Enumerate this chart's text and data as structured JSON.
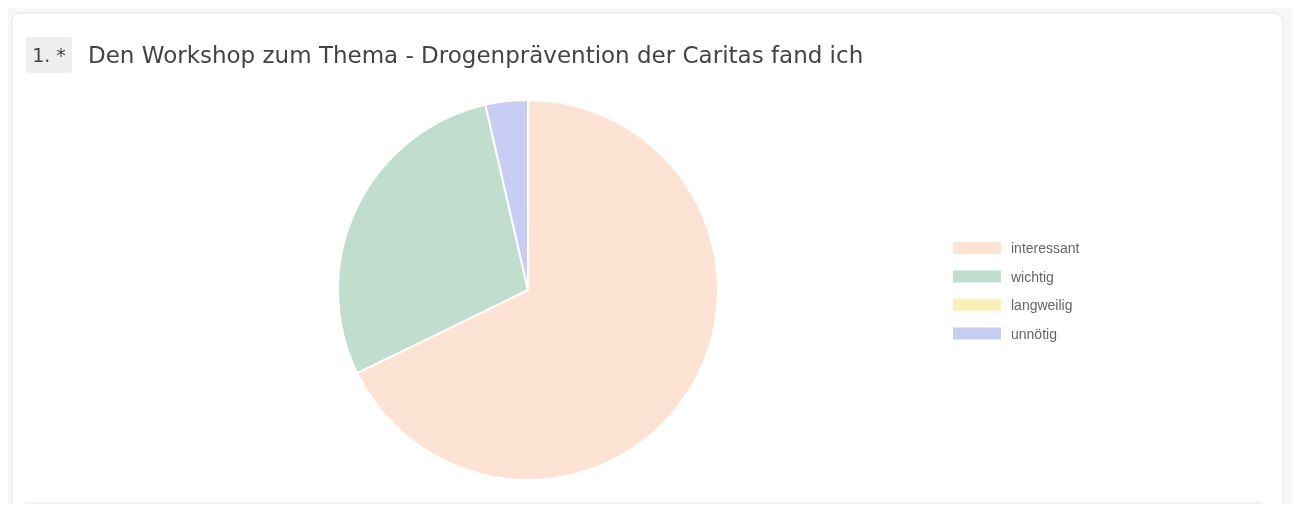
{
  "chart_data": {
    "type": "pie",
    "title": "Den Workshop zum Thema - Drogenprävention der Caritas fand ich",
    "annotations": [
      "1. *"
    ],
    "categories": [
      "interessant",
      "wichtig",
      "langweilig",
      "unnötig"
    ],
    "values": [
      67.8,
      28.6,
      0,
      3.6
    ],
    "colors": [
      "#fde3d4",
      "#c0ddcd",
      "#f8f2b8",
      "#c8cdf4"
    ],
    "legend": "right"
  }
}
